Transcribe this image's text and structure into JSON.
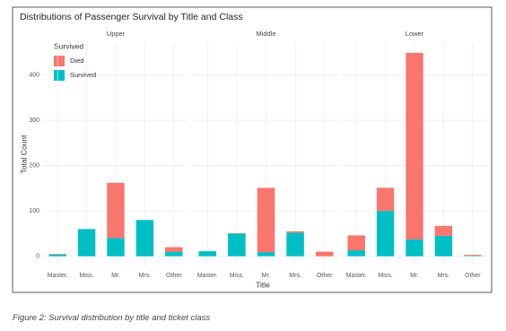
{
  "chart_data": {
    "type": "bar",
    "stacked": true,
    "title": "Distributions of Passenger Survival by Title and Class",
    "xlabel": "Title",
    "ylabel": "Total Count",
    "legend_title": "Survived",
    "facets": [
      "Upper",
      "Middle",
      "Lower"
    ],
    "categories": [
      "Master.",
      "Miss.",
      "Mr.",
      "Mrs.",
      "Other"
    ],
    "series": [
      {
        "name": "Died",
        "color": "#F8766D",
        "values": [
          [
            1,
            0,
            122,
            0,
            10
          ],
          [
            0,
            1,
            142,
            3,
            10
          ],
          [
            33,
            51,
            412,
            22,
            2
          ]
        ]
      },
      {
        "name": "Survived",
        "color": "#00BFC4",
        "values": [
          [
            4,
            60,
            40,
            80,
            10
          ],
          [
            11,
            50,
            9,
            52,
            0
          ],
          [
            13,
            100,
            37,
            45,
            1
          ]
        ]
      }
    ],
    "ylim": [
      -22.5,
      472.5
    ],
    "yticks": [
      0,
      100,
      200,
      300,
      400
    ],
    "grid": true
  },
  "caption": "Figure 2: Survival distribution by title and ticket class"
}
